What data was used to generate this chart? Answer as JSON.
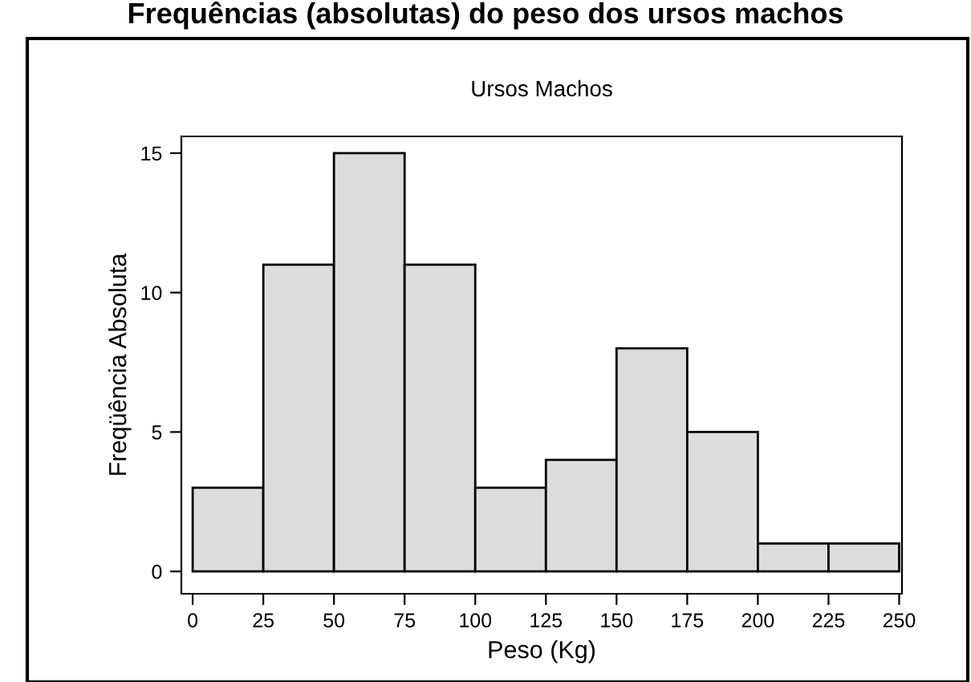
{
  "chart_data": {
    "type": "histogram",
    "title": "Frequências (absolutas) do peso dos ursos machos",
    "subtitle": "Ursos Machos",
    "xlabel": "Peso (Kg)",
    "ylabel": "Freqüência Absoluta",
    "bins": [
      0,
      25,
      50,
      75,
      100,
      125,
      150,
      175,
      200,
      225,
      250
    ],
    "values": [
      3,
      11,
      15,
      11,
      3,
      4,
      8,
      5,
      1,
      1
    ],
    "color": "#dcdcdc",
    "xlim": [
      -4,
      251
    ],
    "ylim": [
      -0.8,
      15.6
    ],
    "xticks": [
      0,
      25,
      50,
      75,
      100,
      125,
      150,
      175,
      200,
      225,
      250
    ],
    "yticks": [
      0,
      5,
      10,
      15
    ],
    "grid": false,
    "legend": false
  }
}
